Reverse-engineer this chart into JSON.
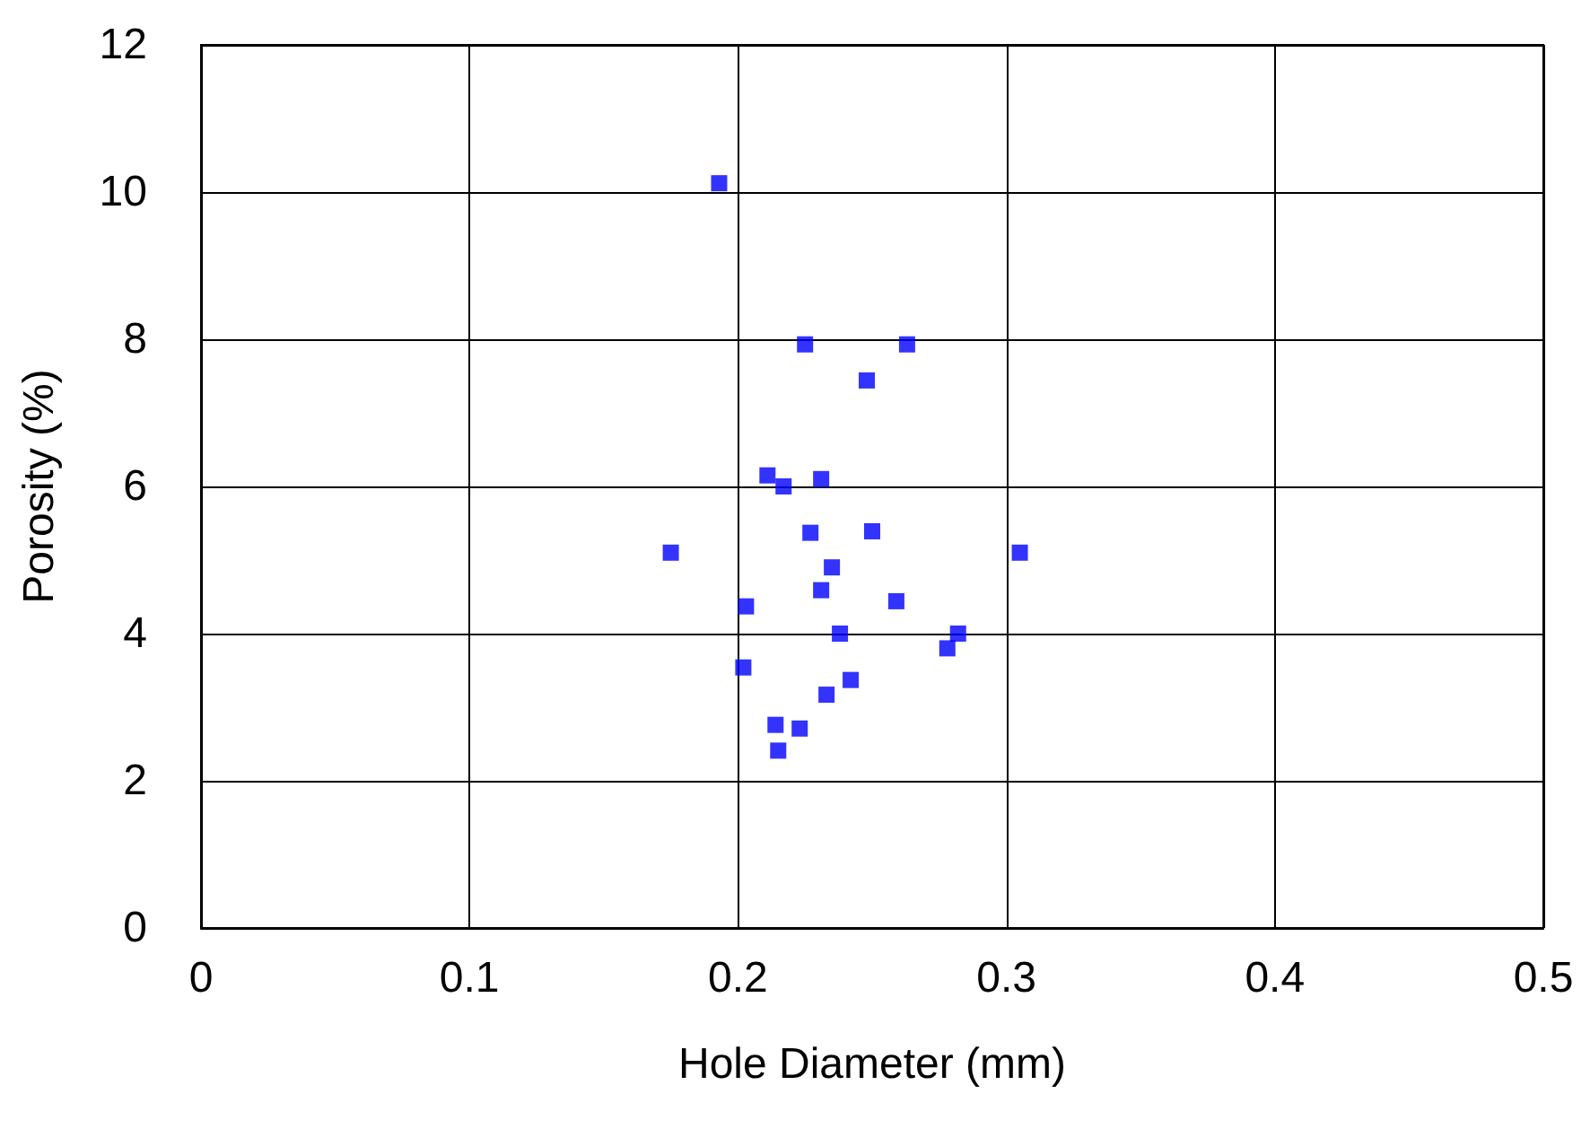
{
  "chart_data": {
    "type": "scatter",
    "xlabel": "Hole Diameter (mm)",
    "ylabel": "Porosity (%)",
    "x": [
      0.193,
      0.225,
      0.263,
      0.248,
      0.211,
      0.231,
      0.217,
      0.175,
      0.305,
      0.227,
      0.25,
      0.235,
      0.231,
      0.203,
      0.259,
      0.238,
      0.282,
      0.278,
      0.202,
      0.242,
      0.233,
      0.214,
      0.223,
      0.215
    ],
    "series": [
      {
        "color": "#0000ff",
        "values": [
          10.12,
          7.93,
          7.93,
          7.44,
          6.15,
          6.1,
          6.0,
          5.1,
          5.1,
          5.37,
          5.39,
          4.9,
          4.59,
          4.37,
          4.44,
          4.0,
          4.0,
          3.8,
          3.54,
          3.37,
          3.17,
          2.76,
          2.71,
          2.41
        ]
      }
    ],
    "xlim": [
      0,
      0.5
    ],
    "xticks": [
      0,
      0.1,
      0.2,
      0.3,
      0.4,
      0.5
    ],
    "ylim": [
      0,
      12
    ],
    "yticks": [
      0,
      2,
      4,
      6,
      8,
      10,
      12
    ],
    "grid": true,
    "marker": "square"
  }
}
